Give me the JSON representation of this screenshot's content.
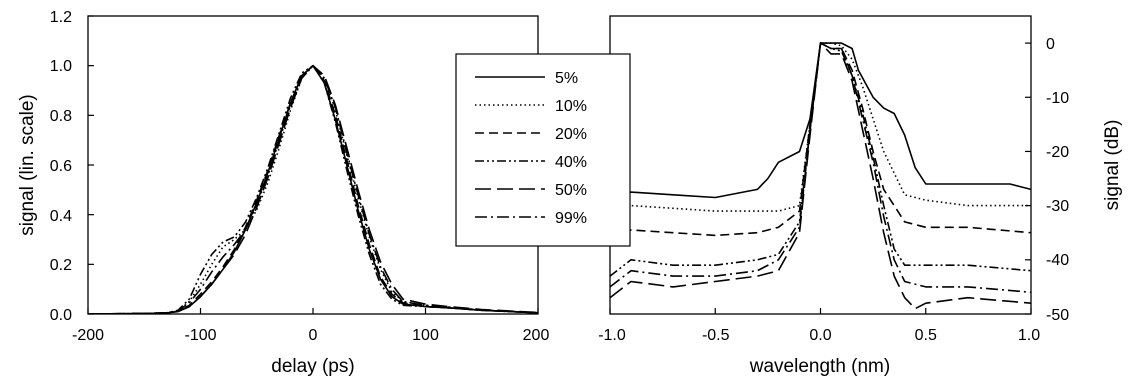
{
  "chart_data": [
    {
      "type": "line",
      "xlabel": "delay (ps)",
      "ylabel": "signal (lin. scale)",
      "xlim": [
        -200,
        200
      ],
      "ylim": [
        0,
        1.2
      ],
      "x_ticks": [
        "-200",
        "-100",
        "0",
        "100",
        "200"
      ],
      "y_ticks": [
        "0.0",
        "0.2",
        "0.4",
        "0.6",
        "0.8",
        "1.0",
        "1.2"
      ],
      "grid": false,
      "series": [
        {
          "name": "5%",
          "style": "solid",
          "x": [
            -200,
            -150,
            -130,
            -120,
            -110,
            -100,
            -90,
            -80,
            -70,
            -60,
            -50,
            -40,
            -30,
            -20,
            -10,
            0,
            10,
            20,
            30,
            40,
            50,
            60,
            70,
            80,
            100,
            120,
            150,
            200
          ],
          "y": [
            0,
            0.002,
            0.004,
            0.01,
            0.03,
            0.07,
            0.12,
            0.18,
            0.25,
            0.34,
            0.45,
            0.57,
            0.71,
            0.85,
            0.96,
            1.0,
            0.93,
            0.78,
            0.6,
            0.42,
            0.26,
            0.14,
            0.07,
            0.04,
            0.03,
            0.025,
            0.015,
            0.005
          ]
        },
        {
          "name": "10%",
          "style": "dotted",
          "x": [
            -200,
            -150,
            -130,
            -120,
            -110,
            -100,
            -90,
            -80,
            -70,
            -60,
            -50,
            -40,
            -30,
            -20,
            -10,
            0,
            10,
            20,
            30,
            40,
            50,
            60,
            70,
            80,
            100,
            120,
            150,
            200
          ],
          "y": [
            0,
            0.002,
            0.005,
            0.012,
            0.05,
            0.12,
            0.2,
            0.27,
            0.3,
            0.34,
            0.42,
            0.53,
            0.67,
            0.82,
            0.95,
            1.0,
            0.95,
            0.82,
            0.64,
            0.47,
            0.31,
            0.18,
            0.09,
            0.05,
            0.035,
            0.027,
            0.015,
            0.005
          ]
        },
        {
          "name": "20%",
          "style": "dash",
          "x": [
            -200,
            -150,
            -130,
            -120,
            -110,
            -100,
            -90,
            -80,
            -70,
            -60,
            -50,
            -40,
            -30,
            -20,
            -10,
            0,
            10,
            20,
            30,
            40,
            50,
            60,
            70,
            80,
            100,
            120,
            150,
            200
          ],
          "y": [
            0,
            0.002,
            0.004,
            0.01,
            0.035,
            0.08,
            0.13,
            0.19,
            0.26,
            0.35,
            0.46,
            0.58,
            0.72,
            0.85,
            0.96,
            1.0,
            0.94,
            0.8,
            0.62,
            0.44,
            0.28,
            0.15,
            0.08,
            0.045,
            0.03,
            0.025,
            0.015,
            0.005
          ]
        },
        {
          "name": "40%",
          "style": "dash-dot-dot",
          "x": [
            -200,
            -150,
            -130,
            -120,
            -110,
            -100,
            -90,
            -80,
            -70,
            -60,
            -50,
            -40,
            -30,
            -20,
            -10,
            0,
            10,
            20,
            30,
            40,
            50,
            60,
            70,
            80,
            100,
            120,
            150,
            200
          ],
          "y": [
            0,
            0.002,
            0.005,
            0.015,
            0.06,
            0.16,
            0.24,
            0.29,
            0.31,
            0.37,
            0.47,
            0.59,
            0.73,
            0.87,
            0.97,
            1.0,
            0.93,
            0.77,
            0.58,
            0.4,
            0.24,
            0.12,
            0.06,
            0.035,
            0.03,
            0.025,
            0.015,
            0.005
          ]
        },
        {
          "name": "50%",
          "style": "long-dash",
          "x": [
            -200,
            -150,
            -130,
            -120,
            -110,
            -100,
            -90,
            -80,
            -70,
            -60,
            -50,
            -40,
            -30,
            -20,
            -10,
            0,
            10,
            20,
            30,
            40,
            50,
            60,
            70,
            80,
            100,
            120,
            150,
            200
          ],
          "y": [
            0,
            0.002,
            0.004,
            0.01,
            0.03,
            0.07,
            0.12,
            0.18,
            0.24,
            0.32,
            0.43,
            0.55,
            0.69,
            0.83,
            0.95,
            1.0,
            0.96,
            0.84,
            0.67,
            0.5,
            0.34,
            0.21,
            0.12,
            0.06,
            0.04,
            0.03,
            0.018,
            0.006
          ]
        },
        {
          "name": "99%",
          "style": "dash-dot",
          "x": [
            -200,
            -150,
            -130,
            -120,
            -110,
            -100,
            -90,
            -80,
            -70,
            -60,
            -50,
            -40,
            -30,
            -20,
            -10,
            0,
            10,
            20,
            30,
            40,
            50,
            60,
            70,
            80,
            100,
            120,
            150,
            200
          ],
          "y": [
            0,
            0.002,
            0.005,
            0.012,
            0.045,
            0.1,
            0.17,
            0.23,
            0.28,
            0.34,
            0.44,
            0.56,
            0.7,
            0.84,
            0.95,
            1.0,
            0.95,
            0.83,
            0.65,
            0.48,
            0.32,
            0.19,
            0.1,
            0.05,
            0.035,
            0.028,
            0.016,
            0.005
          ]
        }
      ]
    },
    {
      "type": "line",
      "xlabel": "wavelength (nm)",
      "ylabel": "signal (dB)",
      "xlim": [
        -1.0,
        1.0
      ],
      "ylim": [
        -50,
        5
      ],
      "x_ticks": [
        "-1.0",
        "-0.5",
        "0.0",
        "0.5",
        "1.0"
      ],
      "y_ticks": [
        "0",
        "-10",
        "-20",
        "-30",
        "-40",
        "-50"
      ],
      "y_axis_side": "right",
      "grid": false,
      "series": [
        {
          "name": "5%",
          "style": "solid",
          "x": [
            -1.0,
            -0.9,
            -0.7,
            -0.5,
            -0.3,
            -0.25,
            -0.2,
            -0.1,
            -0.05,
            0.0,
            0.05,
            0.1,
            0.15,
            0.18,
            0.25,
            0.3,
            0.35,
            0.4,
            0.45,
            0.5,
            0.7,
            0.9,
            1.0
          ],
          "y": [
            -29,
            -27.5,
            -28,
            -28.5,
            -27,
            -25,
            -22,
            -20,
            -14,
            0,
            0,
            0,
            -1,
            -5,
            -10,
            -12,
            -13,
            -17,
            -23,
            -26,
            -26,
            -26,
            -27
          ]
        },
        {
          "name": "10%",
          "style": "dotted",
          "x": [
            -1.0,
            -0.9,
            -0.7,
            -0.5,
            -0.3,
            -0.2,
            -0.1,
            -0.05,
            0.0,
            0.05,
            0.1,
            0.15,
            0.2,
            0.25,
            0.3,
            0.4,
            0.5,
            0.7,
            1.0
          ],
          "y": [
            -31,
            -30,
            -30.5,
            -31,
            -31,
            -31,
            -30,
            -15,
            0,
            0,
            -0.5,
            -3,
            -8,
            -14,
            -20,
            -28,
            -29,
            -30,
            -30
          ]
        },
        {
          "name": "20%",
          "style": "dash",
          "x": [
            -1.0,
            -0.9,
            -0.7,
            -0.5,
            -0.3,
            -0.2,
            -0.1,
            -0.05,
            0.0,
            0.05,
            0.1,
            0.15,
            0.2,
            0.25,
            0.3,
            0.4,
            0.5,
            0.7,
            1.0
          ],
          "y": [
            -36,
            -34.5,
            -35,
            -35.5,
            -35,
            -34,
            -31,
            -15,
            0,
            -1,
            -1,
            -5,
            -12,
            -20,
            -27,
            -33,
            -34,
            -34,
            -35
          ]
        },
        {
          "name": "40%",
          "style": "dash-dot-dot",
          "x": [
            -1.0,
            -0.9,
            -0.7,
            -0.5,
            -0.3,
            -0.2,
            -0.1,
            -0.05,
            0.0,
            0.05,
            0.1,
            0.15,
            0.2,
            0.25,
            0.3,
            0.35,
            0.4,
            0.5,
            0.7,
            1.0
          ],
          "y": [
            -43,
            -40,
            -41,
            -41,
            -40,
            -39,
            -33,
            -16,
            0,
            -1,
            -1.5,
            -6,
            -13,
            -21,
            -30,
            -38,
            -41,
            -41,
            -41,
            -42
          ]
        },
        {
          "name": "50%",
          "style": "long-dash",
          "x": [
            -1.0,
            -0.9,
            -0.7,
            -0.5,
            -0.3,
            -0.2,
            -0.1,
            -0.05,
            0.0,
            0.05,
            0.1,
            0.15,
            0.2,
            0.25,
            0.3,
            0.35,
            0.4,
            0.45,
            0.5,
            0.7,
            1.0
          ],
          "y": [
            -47,
            -44,
            -45,
            -44,
            -43,
            -42,
            -35,
            -17,
            0,
            -2,
            -2,
            -7,
            -16,
            -25,
            -35,
            -43,
            -47,
            -49,
            -48,
            -47,
            -48
          ]
        },
        {
          "name": "99%",
          "style": "dash-dot",
          "x": [
            -1.0,
            -0.9,
            -0.7,
            -0.5,
            -0.3,
            -0.2,
            -0.1,
            -0.05,
            0.0,
            0.05,
            0.1,
            0.15,
            0.2,
            0.25,
            0.3,
            0.35,
            0.4,
            0.5,
            0.7,
            1.0
          ],
          "y": [
            -45,
            -42,
            -43,
            -43,
            -42,
            -40,
            -34,
            -16,
            0,
            -1,
            -1,
            -6,
            -14,
            -22,
            -32,
            -40,
            -44,
            -45,
            -45,
            -46
          ]
        }
      ]
    }
  ]
}
